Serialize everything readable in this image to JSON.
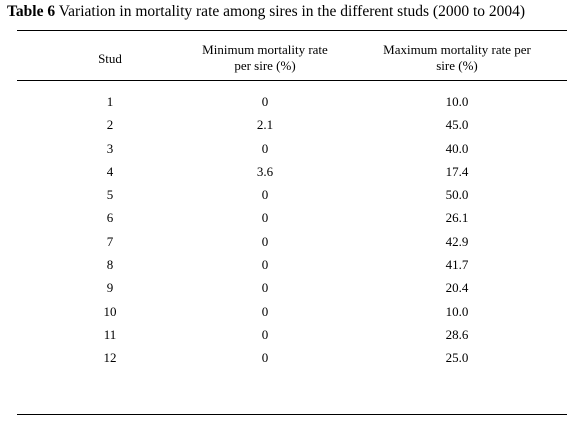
{
  "table": {
    "title_label": "Table 6",
    "title_text": " Variation in mortality rate among sires in the different studs (2000 to 2004)",
    "headers": {
      "stud": "Stud",
      "min_line1": "Minimum mortality rate",
      "min_line2": "per sire (%)",
      "max_line1": "Maximum mortality rate per",
      "max_line2": "sire (%)"
    },
    "rows": [
      {
        "stud": "1",
        "min": "0",
        "max": "10.0"
      },
      {
        "stud": "2",
        "min": "2.1",
        "max": "45.0"
      },
      {
        "stud": "3",
        "min": "0",
        "max": "40.0"
      },
      {
        "stud": "4",
        "min": "3.6",
        "max": "17.4"
      },
      {
        "stud": "5",
        "min": "0",
        "max": "50.0"
      },
      {
        "stud": "6",
        "min": "0",
        "max": "26.1"
      },
      {
        "stud": "7",
        "min": "0",
        "max": "42.9"
      },
      {
        "stud": "8",
        "min": "0",
        "max": "41.7"
      },
      {
        "stud": "9",
        "min": "0",
        "max": "20.4"
      },
      {
        "stud": "10",
        "min": "0",
        "max": "10.0"
      },
      {
        "stud": "11",
        "min": "0",
        "max": "28.6"
      },
      {
        "stud": "12",
        "min": "0",
        "max": "25.0"
      }
    ]
  }
}
